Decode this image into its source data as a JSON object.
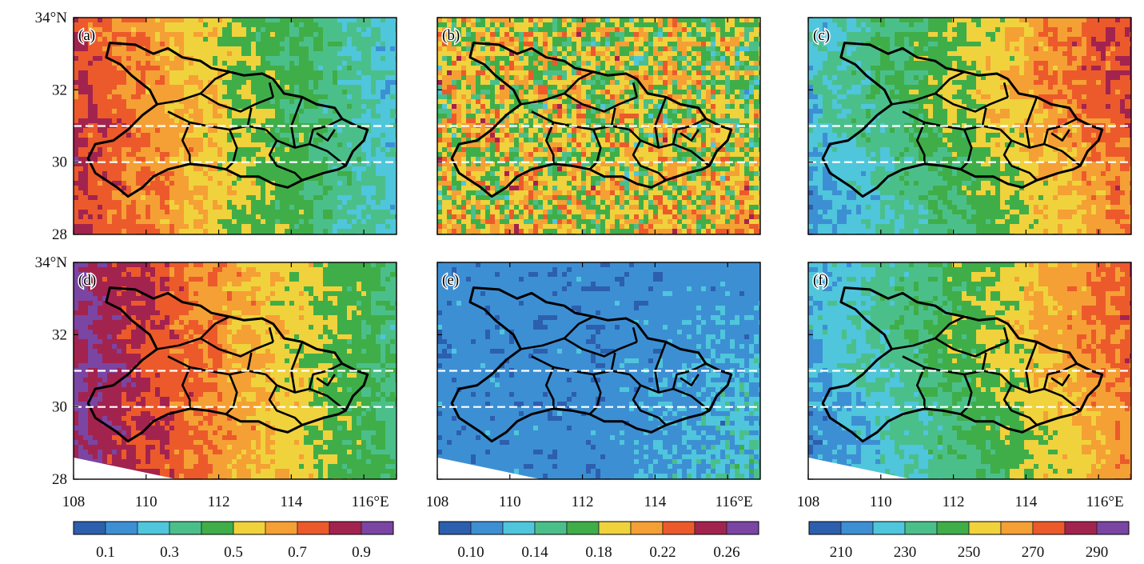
{
  "figure": {
    "x_ticks": [
      "108",
      "110",
      "112",
      "114",
      "116°E"
    ],
    "y_ticks": [
      "34°N",
      "32",
      "30",
      "28"
    ],
    "highlight_latitudes": [
      "31",
      "30"
    ]
  },
  "panels": [
    {
      "label": "(a)",
      "scale": 0,
      "pattern": "a"
    },
    {
      "label": "(b)",
      "scale": 1,
      "pattern": "b"
    },
    {
      "label": "(c)",
      "scale": 2,
      "pattern": "c"
    },
    {
      "label": "(d)",
      "scale": 0,
      "pattern": "d"
    },
    {
      "label": "(e)",
      "scale": 1,
      "pattern": "e"
    },
    {
      "label": "(f)",
      "scale": 2,
      "pattern": "f"
    }
  ],
  "colorbars": [
    {
      "labels": [
        "0.1",
        "0.3",
        "0.5",
        "0.7",
        "0.9"
      ]
    },
    {
      "labels": [
        "0.10",
        "0.14",
        "0.18",
        "0.22",
        "0.26"
      ]
    },
    {
      "labels": [
        "210",
        "230",
        "250",
        "270",
        "290"
      ]
    }
  ],
  "palette": [
    "#2c5fad",
    "#3d8fd4",
    "#4fc6dc",
    "#4bbf8a",
    "#3fae49",
    "#f0d23c",
    "#f5a034",
    "#ec5a2c",
    "#a3234f",
    "#7b45a3"
  ]
}
